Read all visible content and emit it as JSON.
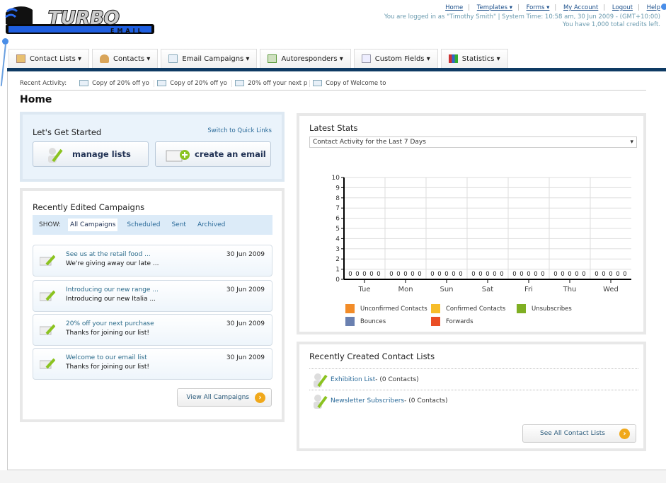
{
  "logo": {
    "text": "TURBO",
    "subtext": "EMAIL"
  },
  "top_links": [
    "Home",
    "Templates ▾",
    "Forms ▾",
    "My Account",
    "Logout",
    "Help"
  ],
  "user_info": "You are logged in as \"Timothy Smith\" | System Time: 10:58 am, 30 Jun 2009 - (GMT+10:00)",
  "credits": "You have 1,000 total credits left.",
  "nav": [
    {
      "label": "Contact Lists ▾",
      "icon": "contact-lists-icon"
    },
    {
      "label": "Contacts ▾",
      "icon": "contacts-icon"
    },
    {
      "label": "Email Campaigns ▾",
      "icon": "envelope-icon"
    },
    {
      "label": "Autoresponders ▾",
      "icon": "autoresponder-icon"
    },
    {
      "label": "Custom Fields ▾",
      "icon": "custom-fields-icon"
    },
    {
      "label": "Statistics ▾",
      "icon": "bar-chart-icon"
    }
  ],
  "recent_activity": {
    "label": "Recent Activity:",
    "items": [
      "Copy of 20% off yo",
      "Copy of 20% off yo",
      "20% off your next p",
      "Copy of Welcome to"
    ]
  },
  "page_title": "Home",
  "get_started": {
    "title": "Let's Get Started",
    "switch": "Switch to Quick Links",
    "manage": "manage lists",
    "create": "create an email"
  },
  "campaigns": {
    "title": "Recently Edited Campaigns",
    "show_label": "SHOW:",
    "filters": [
      "All Campaigns",
      "Scheduled",
      "Sent",
      "Archived"
    ],
    "items": [
      {
        "title": "See us at the retail food ...",
        "subject": "We're giving away our late ...",
        "date": "30 Jun 2009"
      },
      {
        "title": "Introducing our new range ...",
        "subject": "Introducing our new Italia ...",
        "date": "30 Jun 2009"
      },
      {
        "title": "20% off your next purchase",
        "subject": "Thanks for joining our list!",
        "date": "30 Jun 2009"
      },
      {
        "title": "Welcome to our email list",
        "subject": "Thanks for joining our list!",
        "date": "30 Jun 2009"
      }
    ],
    "view_all": "View All Campaigns"
  },
  "stats": {
    "title": "Latest Stats",
    "select": "Contact Activity for the Last 7 Days"
  },
  "chart_data": {
    "type": "bar",
    "categories": [
      "Tue",
      "Mon",
      "Sun",
      "Sat",
      "Fri",
      "Thu",
      "Wed"
    ],
    "ylim": [
      0,
      10
    ],
    "yticks": [
      0,
      1,
      2,
      3,
      4,
      5,
      6,
      7,
      8,
      9,
      10
    ],
    "grid": true,
    "legend": "bottom",
    "series": [
      {
        "name": "Unconfirmed Contacts",
        "color": "#f28c28",
        "values": [
          0,
          0,
          0,
          0,
          0,
          0,
          0
        ]
      },
      {
        "name": "Confirmed Contacts",
        "color": "#f7bd2a",
        "values": [
          0,
          0,
          0,
          0,
          0,
          0,
          0
        ]
      },
      {
        "name": "Unsubscribes",
        "color": "#7faf23",
        "values": [
          0,
          0,
          0,
          0,
          0,
          0,
          0
        ]
      },
      {
        "name": "Bounces",
        "color": "#6a80b0",
        "values": [
          0,
          0,
          0,
          0,
          0,
          0,
          0
        ]
      },
      {
        "name": "Forwards",
        "color": "#ea4e25",
        "values": [
          0,
          0,
          0,
          0,
          0,
          0,
          0
        ]
      }
    ]
  },
  "contact_lists": {
    "title": "Recently Created Contact Lists",
    "items": [
      {
        "name": "Exhibition List",
        "count": " - (0 Contacts)"
      },
      {
        "name": "Newsletter Subscribers",
        "count": " - (0 Contacts)"
      }
    ],
    "see_all": "See All Contact Lists"
  }
}
